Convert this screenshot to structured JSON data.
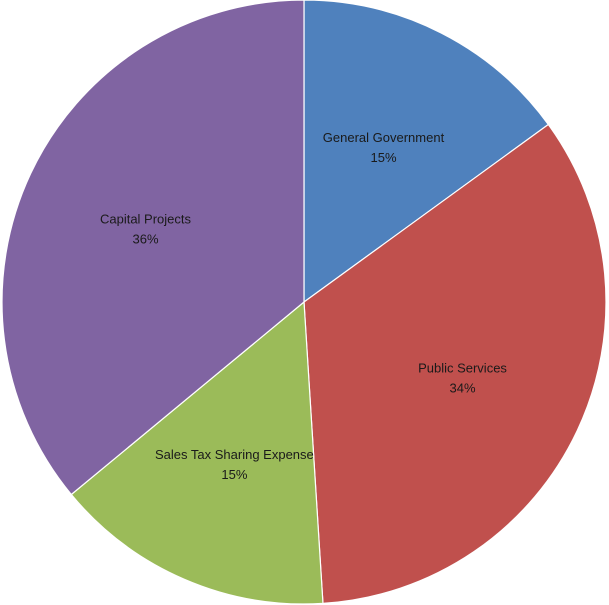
{
  "chart_data": {
    "type": "pie",
    "title": "",
    "start_angle_deg": 0,
    "direction": "clockwise",
    "slices": [
      {
        "label": "General Government",
        "value": 15,
        "display": "15%",
        "color": "#4f81bd"
      },
      {
        "label": "Public Services",
        "value": 34,
        "display": "34%",
        "color": "#c0504d"
      },
      {
        "label": "Sales Tax Sharing Expense",
        "value": 15,
        "display": "15%",
        "color": "#9bbb59"
      },
      {
        "label": "Capital Projects",
        "value": 36,
        "display": "36%",
        "color": "#8064a2"
      }
    ],
    "legend": "none"
  }
}
